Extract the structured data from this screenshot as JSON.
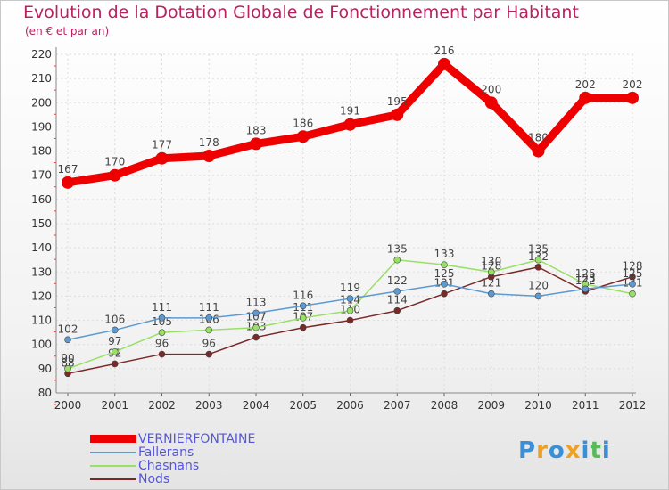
{
  "title": "Evolution de la Dotation Globale de Fonctionnement par Habitant",
  "subtitle": "(en € et par an)",
  "logo": {
    "letters": [
      "P",
      "r",
      "o",
      "x",
      "i",
      "t",
      "i"
    ],
    "colors": [
      "#3a8fd6",
      "#f0a020",
      "#3a8fd6",
      "#f0a020",
      "#3a8fd6",
      "#5cb85c",
      "#3a8fd6"
    ]
  },
  "chart_data": {
    "type": "line",
    "title": "Evolution de la Dotation Globale de Fonctionnement par Habitant",
    "ylabel": "(en € et par an)",
    "xlabel": "",
    "categories": [
      "2000",
      "2001",
      "2002",
      "2003",
      "2004",
      "2005",
      "2006",
      "2007",
      "2008",
      "2009",
      "2010",
      "2011",
      "2012"
    ],
    "ylim": [
      80,
      220
    ],
    "yticks": [
      80,
      90,
      100,
      110,
      120,
      130,
      140,
      150,
      160,
      170,
      180,
      190,
      200,
      210,
      220
    ],
    "grid": true,
    "legend_position": "bottom-left",
    "series": [
      {
        "name": "VERNIERFONTAINE",
        "color": "#ee0000",
        "values": [
          167,
          170,
          177,
          178,
          183,
          186,
          191,
          195,
          216,
          200,
          180,
          202,
          202
        ]
      },
      {
        "name": "Fallerans",
        "color": "#5d9ad2",
        "values": [
          102,
          106,
          111,
          111,
          113,
          116,
          119,
          122,
          125,
          121,
          120,
          123,
          125
        ]
      },
      {
        "name": "Chasnans",
        "color": "#99e066",
        "values": [
          90,
          97,
          105,
          106,
          107,
          111,
          114,
          135,
          133,
          130,
          135,
          125,
          121
        ]
      },
      {
        "name": "Nods",
        "color": "#7a2828",
        "values": [
          88,
          92,
          96,
          96,
          103,
          107,
          110,
          114,
          121,
          128,
          132,
          122,
          128
        ]
      }
    ]
  }
}
